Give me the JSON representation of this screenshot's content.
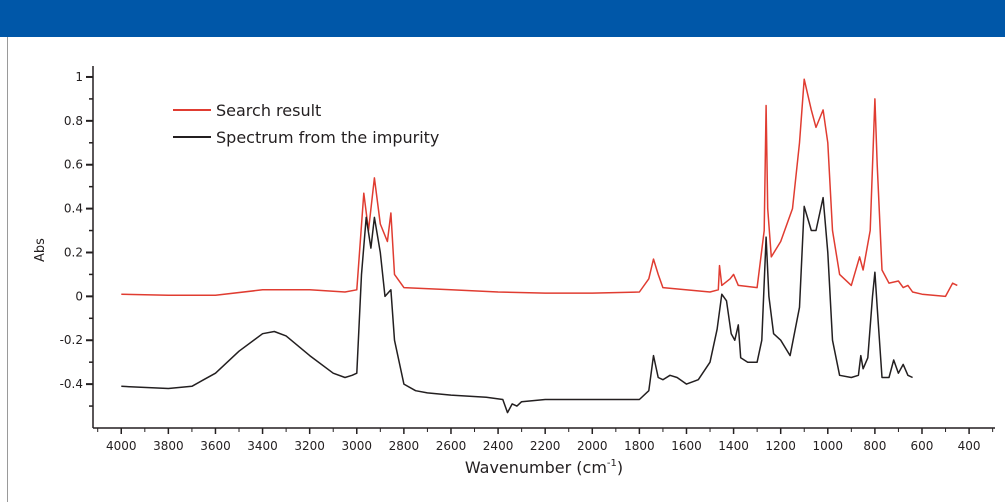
{
  "chart_data": {
    "type": "line",
    "y_label": "Abs",
    "x_label": [
      "Wavenumber (cm",
      "-1",
      ")"
    ],
    "xlim": [
      4120,
      290
    ],
    "ylim": [
      -0.6,
      1.05
    ],
    "xticks": [
      4000,
      3800,
      3600,
      3400,
      3200,
      3000,
      2800,
      2600,
      2400,
      2200,
      2000,
      1800,
      1600,
      1400,
      1200,
      1000,
      800,
      600,
      400
    ],
    "yticks": [
      -0.4,
      -0.2,
      0,
      0.2,
      0.4,
      0.6,
      0.8,
      1
    ],
    "legend": "upper left",
    "series": [
      {
        "name": "Search result",
        "color": "#e03c31",
        "x": [
          4000,
          3800,
          3600,
          3400,
          3200,
          3050,
          3000,
          2970,
          2950,
          2925,
          2900,
          2870,
          2855,
          2840,
          2800,
          2600,
          2400,
          2200,
          2000,
          1800,
          1760,
          1740,
          1720,
          1700,
          1500,
          1465,
          1460,
          1450,
          1415,
          1400,
          1380,
          1300,
          1270,
          1262,
          1255,
          1240,
          1200,
          1150,
          1120,
          1100,
          1070,
          1050,
          1020,
          1000,
          980,
          950,
          900,
          865,
          850,
          820,
          800,
          790,
          770,
          740,
          700,
          680,
          660,
          640,
          600,
          500,
          470,
          450
        ],
        "values": [
          0.01,
          0.005,
          0.005,
          0.03,
          0.03,
          0.02,
          0.03,
          0.47,
          0.3,
          0.54,
          0.33,
          0.25,
          0.38,
          0.1,
          0.04,
          0.03,
          0.02,
          0.015,
          0.015,
          0.02,
          0.08,
          0.17,
          0.1,
          0.04,
          0.02,
          0.03,
          0.14,
          0.05,
          0.08,
          0.1,
          0.05,
          0.04,
          0.3,
          0.87,
          0.4,
          0.18,
          0.25,
          0.4,
          0.7,
          0.99,
          0.85,
          0.77,
          0.85,
          0.7,
          0.3,
          0.1,
          0.05,
          0.18,
          0.12,
          0.3,
          0.9,
          0.6,
          0.12,
          0.06,
          0.07,
          0.04,
          0.05,
          0.02,
          0.01,
          0.0,
          0.06,
          0.05
        ]
      },
      {
        "name": "Spectrum from the impurity",
        "color": "#231f20",
        "x": [
          4000,
          3800,
          3700,
          3650,
          3600,
          3500,
          3400,
          3350,
          3300,
          3200,
          3100,
          3050,
          3020,
          3000,
          2980,
          2960,
          2940,
          2925,
          2900,
          2880,
          2855,
          2840,
          2800,
          2750,
          2700,
          2600,
          2450,
          2380,
          2360,
          2340,
          2320,
          2300,
          2200,
          2000,
          1800,
          1760,
          1740,
          1720,
          1700,
          1670,
          1640,
          1600,
          1550,
          1500,
          1470,
          1450,
          1430,
          1410,
          1395,
          1380,
          1370,
          1340,
          1300,
          1280,
          1262,
          1250,
          1230,
          1200,
          1160,
          1120,
          1100,
          1070,
          1050,
          1020,
          1000,
          980,
          950,
          900,
          870,
          860,
          850,
          830,
          810,
          800,
          790,
          770,
          740,
          720,
          700,
          680,
          660,
          640
        ],
        "values": [
          -0.41,
          -0.42,
          -0.41,
          -0.38,
          -0.35,
          -0.25,
          -0.17,
          -0.16,
          -0.18,
          -0.27,
          -0.35,
          -0.37,
          -0.36,
          -0.35,
          0.1,
          0.36,
          0.22,
          0.36,
          0.2,
          0.0,
          0.03,
          -0.2,
          -0.4,
          -0.43,
          -0.44,
          -0.45,
          -0.46,
          -0.47,
          -0.53,
          -0.49,
          -0.5,
          -0.48,
          -0.47,
          -0.47,
          -0.47,
          -0.43,
          -0.27,
          -0.37,
          -0.38,
          -0.36,
          -0.37,
          -0.4,
          -0.38,
          -0.3,
          -0.15,
          0.01,
          -0.02,
          -0.17,
          -0.2,
          -0.13,
          -0.28,
          -0.3,
          -0.3,
          -0.2,
          0.27,
          0.0,
          -0.17,
          -0.2,
          -0.27,
          -0.05,
          0.41,
          0.3,
          0.3,
          0.45,
          0.2,
          -0.2,
          -0.36,
          -0.37,
          -0.36,
          -0.27,
          -0.33,
          -0.28,
          0.0,
          0.11,
          -0.05,
          -0.37,
          -0.37,
          -0.29,
          -0.35,
          -0.31,
          -0.36,
          -0.37
        ]
      }
    ]
  }
}
